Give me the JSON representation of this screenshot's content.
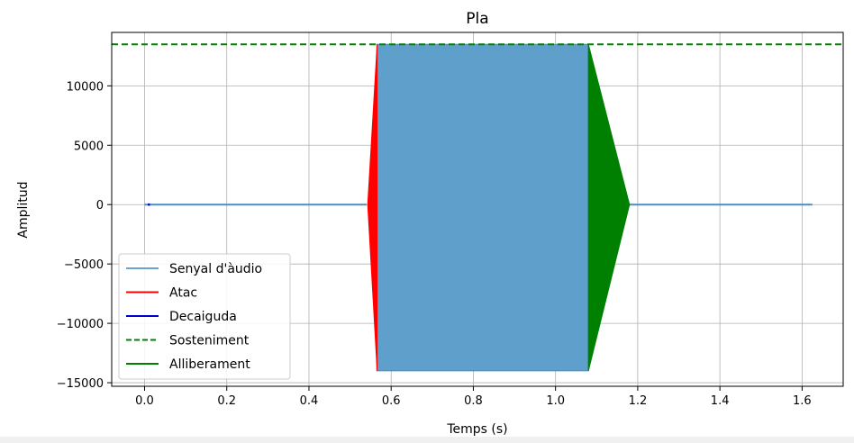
{
  "chart_data": {
    "type": "line",
    "title": "Pla",
    "xlabel": "Temps (s)",
    "ylabel": "Amplitud",
    "xlim": [
      -0.08,
      1.7
    ],
    "ylim": [
      -15300,
      14500
    ],
    "xticks": [
      0.0,
      0.2,
      0.4,
      0.6,
      0.8,
      1.0,
      1.2,
      1.4,
      1.6
    ],
    "xtick_labels": [
      "0.0",
      "0.2",
      "0.4",
      "0.6",
      "0.8",
      "1.0",
      "1.2",
      "1.4",
      "1.6"
    ],
    "yticks": [
      10000,
      5000,
      0,
      -5000,
      -10000,
      -15000
    ],
    "ytick_labels": [
      "10000",
      "5000",
      "0",
      "−5000",
      "−10000",
      "−15000"
    ],
    "grid": true,
    "legend_position": "lower-left",
    "series": [
      {
        "name": "Senyal d'àudio",
        "color": "#4a8fc4",
        "style": "solid",
        "segments": [
          {
            "kind": "flat",
            "x": [
              0.0,
              0.54
            ],
            "y": 0
          },
          {
            "kind": "fill",
            "x": [
              0.565,
              1.08
            ],
            "ymin": -14000,
            "ymax": 13500
          },
          {
            "kind": "flat",
            "x": [
              1.18,
              1.625
            ],
            "y": 0
          }
        ]
      },
      {
        "name": "Atac",
        "color": "#ff0000",
        "style": "solid",
        "segments": [
          {
            "kind": "envelope",
            "x": [
              0.543,
              0.566
            ],
            "ymin": [
              0,
              -14000
            ],
            "ymax": [
              0,
              13500
            ]
          }
        ]
      },
      {
        "name": "Decaiguda",
        "color": "#0000cc",
        "style": "solid",
        "segments": [
          {
            "kind": "flat",
            "x": [
              0.008,
              0.013
            ],
            "y": 0
          }
        ]
      },
      {
        "name": "Sosteniment",
        "color": "#008000",
        "style": "dashed",
        "segments": [
          {
            "kind": "hline",
            "y": 13500
          }
        ]
      },
      {
        "name": "Alliberament",
        "color": "#008000",
        "style": "solid",
        "segments": [
          {
            "kind": "envelope",
            "x": [
              1.08,
              1.18
            ],
            "ymin": [
              -14000,
              0
            ],
            "ymax": [
              13500,
              0
            ]
          }
        ]
      }
    ]
  }
}
